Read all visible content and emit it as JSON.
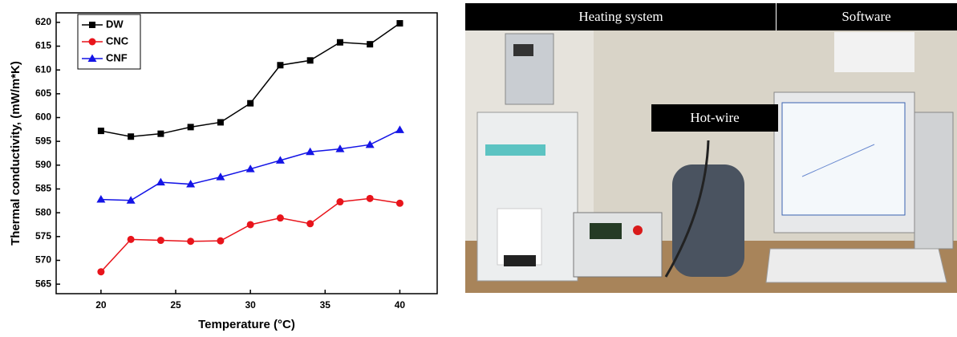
{
  "chart_data": {
    "type": "line",
    "y_label": "Thermal conductivity, (mW/m*K)",
    "x_label": "Temperature (°C)",
    "x": [
      20,
      22,
      24,
      26,
      28,
      30,
      32,
      34,
      36,
      38,
      40
    ],
    "series": [
      {
        "name": "DW",
        "color": "#000000",
        "marker": "square",
        "values": [
          597.2,
          596,
          596.6,
          598,
          599,
          603,
          611,
          612,
          615.8,
          615.4,
          619.8
        ]
      },
      {
        "name": "CNC",
        "color": "#e8141b",
        "marker": "circle",
        "values": [
          567.6,
          574.4,
          574.2,
          574,
          574.1,
          577.5,
          578.9,
          577.7,
          582.3,
          583,
          582
        ]
      },
      {
        "name": "CNF",
        "color": "#1414e6",
        "marker": "triangle",
        "values": [
          582.8,
          582.6,
          586.4,
          586,
          587.5,
          589.2,
          591,
          592.8,
          593.4,
          594.3,
          597.4
        ]
      }
    ],
    "xlim": [
      17,
      42.5
    ],
    "xticks": [
      20,
      25,
      30,
      35,
      40
    ],
    "ylim": [
      563,
      622
    ],
    "yticks": [
      565,
      570,
      575,
      580,
      585,
      590,
      595,
      600,
      605,
      610,
      615,
      620
    ],
    "legend": "top-left",
    "grid": false
  },
  "photo": {
    "header": [
      "Heating system",
      "Software"
    ],
    "callout": "Hot-wire"
  }
}
